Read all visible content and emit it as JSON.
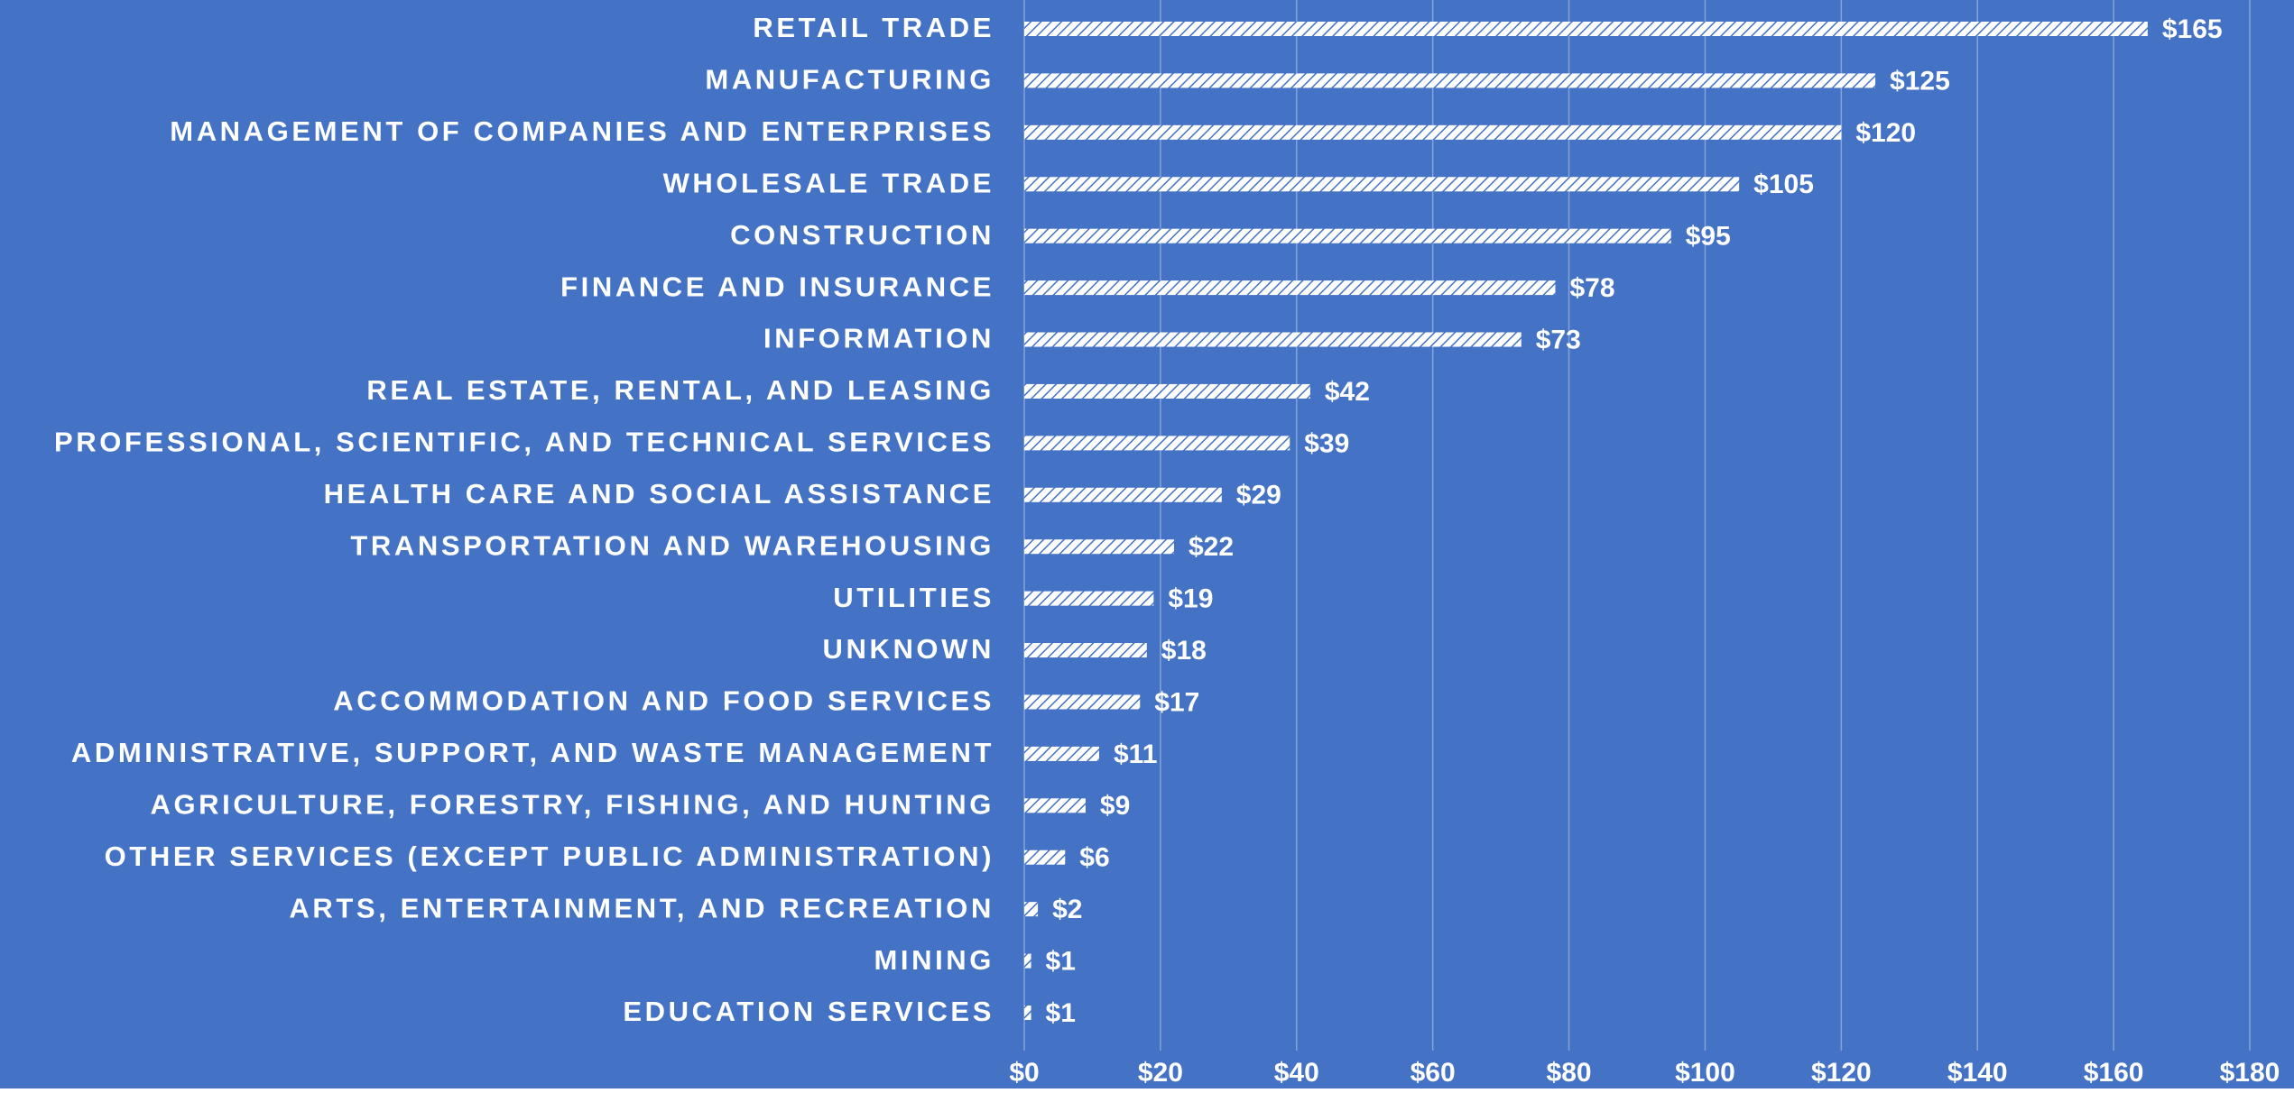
{
  "chart_data": {
    "type": "bar",
    "orientation": "horizontal",
    "categories": [
      "RETAIL TRADE",
      "MANUFACTURING",
      "MANAGEMENT OF COMPANIES AND ENTERPRISES",
      "WHOLESALE TRADE",
      "CONSTRUCTION",
      "FINANCE AND INSURANCE",
      "INFORMATION",
      "REAL ESTATE, RENTAL, AND LEASING",
      "PROFESSIONAL, SCIENTIFIC, AND TECHNICAL SERVICES",
      "HEALTH CARE AND SOCIAL ASSISTANCE",
      "TRANSPORTATION AND WAREHOUSING",
      "UTILITIES",
      "UNKNOWN",
      "ACCOMMODATION AND FOOD SERVICES",
      "ADMINISTRATIVE, SUPPORT, AND WASTE MANAGEMENT",
      "AGRICULTURE, FORESTRY, FISHING, AND HUNTING",
      "OTHER SERVICES (EXCEPT PUBLIC ADMINISTRATION)",
      "ARTS, ENTERTAINMENT, AND RECREATION",
      "MINING",
      "EDUCATION SERVICES"
    ],
    "values": [
      165,
      125,
      120,
      105,
      95,
      78,
      73,
      42,
      39,
      29,
      22,
      19,
      18,
      17,
      11,
      9,
      6,
      2,
      1,
      1
    ],
    "value_labels": [
      "$165",
      "$125",
      "$120",
      "$105",
      "$95",
      "$78",
      "$73",
      "$42",
      "$39",
      "$29",
      "$22",
      "$19",
      "$18",
      "$17",
      "$11",
      "$9",
      "$6",
      "$2",
      "$1",
      "$1"
    ],
    "color": "#ffffff",
    "background": "#4472c4",
    "xlim": [
      0,
      180
    ],
    "xticks": [
      {
        "value": 0,
        "label": "$0"
      },
      {
        "value": 20,
        "label": "$20"
      },
      {
        "value": 40,
        "label": "$40"
      },
      {
        "value": 60,
        "label": "$60"
      },
      {
        "value": 80,
        "label": "$80"
      },
      {
        "value": 100,
        "label": "$100"
      },
      {
        "value": 120,
        "label": "$120"
      },
      {
        "value": 140,
        "label": "$140"
      },
      {
        "value": 160,
        "label": "$160"
      },
      {
        "value": 180,
        "label": "$180"
      }
    ],
    "grid": true
  }
}
